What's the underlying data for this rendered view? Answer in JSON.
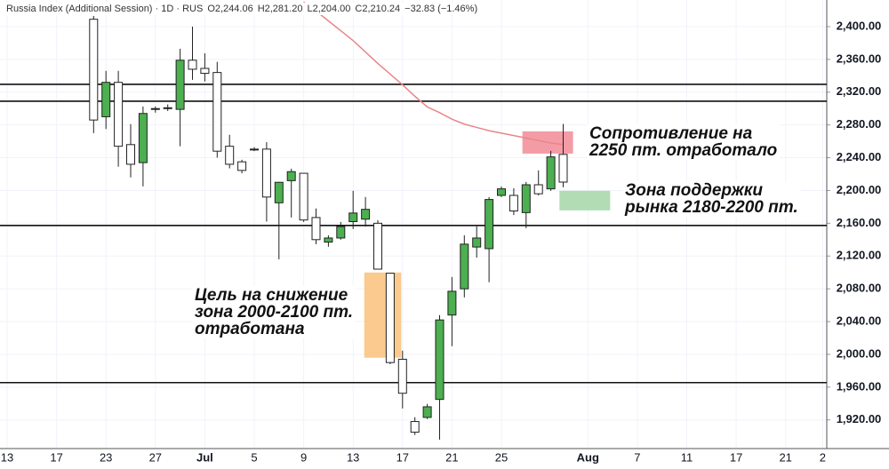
{
  "chart_data": {
    "type": "candlestick",
    "title": "Russia Index (Additional Session) · 1D · RUS",
    "header_values": [
      "O2,244.06",
      "H2,281.20",
      "L2,204.00",
      "C2,210.24",
      "−32.83 (−1.46%)"
    ],
    "categories": [
      "13",
      null,
      null,
      null,
      "17",
      null,
      null,
      null,
      "23",
      null,
      null,
      null,
      "27",
      null,
      null,
      null,
      "Jul",
      null,
      null,
      null,
      "5",
      null,
      null,
      null,
      "9",
      null,
      null,
      null,
      "13",
      null,
      null,
      null,
      "17",
      null,
      null,
      null,
      "21",
      null,
      null,
      null,
      "25",
      null,
      null,
      null,
      null,
      null,
      null,
      "Aug",
      null,
      null,
      null,
      "7",
      null,
      null,
      null,
      "11",
      null,
      null,
      null,
      "17",
      null,
      null,
      null,
      "21",
      null,
      null,
      "2"
    ],
    "open": [
      null,
      null,
      null,
      null,
      null,
      null,
      null,
      2409,
      2290,
      2332,
      2256,
      2234,
      2299,
      2300,
      2299,
      2359,
      2349,
      2344,
      2254,
      2235,
      2250.5,
      2250.5,
      2185,
      2212,
      2221,
      2167,
      2137,
      2142,
      2162,
      2165,
      2160,
      2099,
      1994,
      1918,
      1923,
      1945,
      2048,
      2080,
      2131,
      2129,
      2194,
      2194,
      2173,
      2207,
      2202,
      2244.06,
      null,
      null,
      null,
      null,
      null,
      null,
      null,
      null,
      null,
      null,
      null,
      null,
      null,
      null,
      null,
      null,
      null,
      null,
      null,
      null,
      null
    ],
    "high": [
      null,
      null,
      null,
      null,
      null,
      null,
      null,
      2413,
      2346,
      2346,
      2281,
      2302.5,
      2302.5,
      2305,
      2373,
      2400,
      2367.5,
      2357,
      2268,
      2237.5,
      2253,
      2259,
      2210.4,
      2226.6,
      2221.2,
      2178,
      2145.4,
      2161.6,
      2199.6,
      2192,
      2163.8,
      2098.8,
      2004.5,
      1923.3,
      1939.5,
      2047.9,
      2094.4,
      2145.4,
      2156.2,
      2192,
      2205,
      2202.8,
      2210.4,
      2224.5,
      2248.3,
      2281.2,
      null,
      null,
      null,
      null,
      null,
      null,
      null,
      null,
      null,
      null,
      null,
      null,
      null,
      null,
      null,
      null,
      null,
      null,
      null,
      null,
      null
    ],
    "low": [
      null,
      null,
      null,
      null,
      null,
      null,
      null,
      2270,
      2275,
      2229,
      2216,
      2205,
      2295,
      2297,
      2254,
      2335,
      2333,
      2240,
      2227,
      2221,
      2248,
      2162,
      2116,
      2167,
      2161.6,
      2134.5,
      2131.3,
      2140,
      2153,
      2156,
      2104,
      1988,
      1934,
      1901.6,
      1921,
      1896,
      2010,
      2069.5,
      2118,
      2088,
      2192,
      2170,
      2154,
      2194,
      2199.6,
      2204,
      null,
      null,
      null,
      null,
      null,
      null,
      null,
      null,
      null,
      null,
      null,
      null,
      null,
      null,
      null,
      null,
      null,
      null,
      null,
      null,
      null
    ],
    "close": [
      null,
      null,
      null,
      null,
      null,
      null,
      null,
      2286,
      2332,
      2254,
      2232,
      2294,
      2300,
      2301,
      2359,
      2348,
      2343,
      2248,
      2232,
      2224.5,
      2250,
      2192,
      2210,
      2223,
      2164,
      2140,
      2142,
      2156,
      2172.5,
      2177,
      2104,
      1990,
      1952.5,
      1905,
      1936,
      2042,
      2077,
      2134.5,
      2142,
      2189,
      2202,
      2175,
      2207,
      2196,
      2241,
      2210.24,
      null,
      null,
      null,
      null,
      null,
      null,
      null,
      null,
      null,
      null,
      null,
      null,
      null,
      null,
      null,
      null,
      null,
      null,
      null,
      null,
      null
    ],
    "up_color": "#4caf50",
    "down_color": "#ffffff",
    "moving_average": {
      "color": "#e8868a",
      "values": [
        null,
        null,
        null,
        null,
        null,
        null,
        null,
        null,
        null,
        null,
        null,
        null,
        null,
        null,
        null,
        null,
        null,
        null,
        null,
        null,
        null,
        null,
        null,
        null,
        2430,
        2419,
        2407,
        2395,
        2383,
        2369,
        2355,
        2342,
        2329,
        2315,
        2302,
        2295,
        2287,
        2281,
        2277,
        2273,
        2270,
        2267,
        2264,
        2261,
        2258,
        2256,
        null,
        null,
        null,
        null,
        null,
        null,
        null,
        null,
        null,
        null,
        null,
        null,
        null,
        null,
        null,
        null,
        null,
        null,
        null,
        null,
        null
      ]
    },
    "levels": [
      2329.6,
      2309,
      2157.3,
      1965.5
    ],
    "zones": [
      {
        "from": 41.7,
        "to": 45.8,
        "y": [
          2245,
          2272.2
        ],
        "color": "#f28b96"
      },
      {
        "from": 44.7,
        "to": 48.8,
        "y": [
          2175.7,
          2199.6
        ],
        "color": "#a5d6a7"
      },
      {
        "from": 28.9,
        "to": 31.9,
        "y": [
          1995.9,
          2099.9
        ],
        "color": "#f9c17a"
      }
    ],
    "annotations": [
      {
        "lines": [
          "Сопротивление на",
          "2250 пт. отработало"
        ]
      },
      {
        "lines": [
          "Зона поддержки",
          "рынка 2180-2200 пт."
        ]
      },
      {
        "lines": [
          "Цель на снижение",
          "зона 2000-2100 пт.",
          "отработана"
        ]
      }
    ],
    "ylim": [
      1885,
      2432.5
    ],
    "yticks": [
      {
        "value": 1920,
        "label": "1,920.00"
      },
      {
        "value": 1960,
        "label": "1,960.00"
      },
      {
        "value": 2000,
        "label": "2,000.00"
      },
      {
        "value": 2040,
        "label": "2,040.00"
      },
      {
        "value": 2080,
        "label": "2,080.00"
      },
      {
        "value": 2120,
        "label": "2,120.00"
      },
      {
        "value": 2160,
        "label": "2,160.00"
      },
      {
        "value": 2200,
        "label": "2,200.00"
      },
      {
        "value": 2240,
        "label": "2,240.00"
      },
      {
        "value": 2280,
        "label": "2,280.00"
      },
      {
        "value": 2320,
        "label": "2,320.00"
      },
      {
        "value": 2360,
        "label": "2,360.00"
      },
      {
        "value": 2400,
        "label": "2,400.00"
      }
    ],
    "grid": true
  }
}
